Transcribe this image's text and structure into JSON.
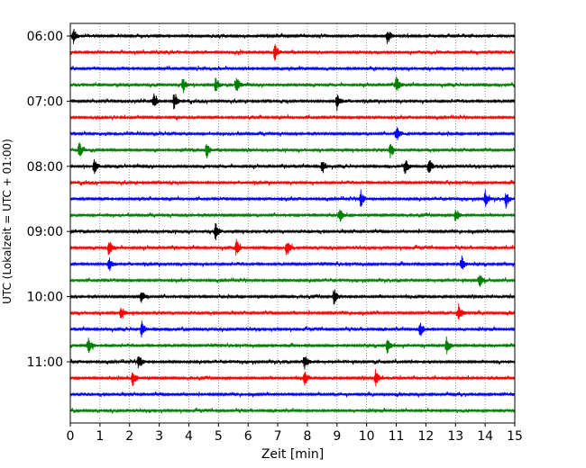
{
  "chart_data": {
    "type": "line",
    "title": "",
    "xlabel": "Zeit  [min]",
    "ylabel": "UTC (Lokalzeit = UTC + 01:00)",
    "xlim": [
      0,
      15
    ],
    "x_ticks": [
      "0",
      "1",
      "2",
      "3",
      "4",
      "5",
      "6",
      "7",
      "8",
      "9",
      "10",
      "11",
      "12",
      "13",
      "14",
      "15"
    ],
    "y_ticks": [
      "06:00",
      "07:00",
      "08:00",
      "09:00",
      "10:00",
      "11:00"
    ],
    "grid": "vertical dotted",
    "trace_colors": [
      "#000000",
      "#ff0000",
      "#0000ff",
      "#008000"
    ],
    "trace_interval_min": 15,
    "traces": [
      {
        "start": "06:00",
        "events_min": [
          0.1,
          10.7
        ]
      },
      {
        "start": "06:15",
        "events_min": [
          6.9
        ]
      },
      {
        "start": "06:30",
        "events_min": []
      },
      {
        "start": "06:45",
        "events_min": [
          3.8,
          4.9,
          5.6,
          11.0
        ]
      },
      {
        "start": "07:00",
        "events_min": [
          2.8,
          3.5,
          9.0
        ]
      },
      {
        "start": "07:15",
        "events_min": []
      },
      {
        "start": "07:30",
        "events_min": [
          11.0
        ]
      },
      {
        "start": "07:45",
        "events_min": [
          0.3,
          4.6,
          10.8
        ]
      },
      {
        "start": "08:00",
        "events_min": [
          0.8,
          8.5,
          11.3,
          12.1
        ]
      },
      {
        "start": "08:15",
        "events_min": []
      },
      {
        "start": "08:30",
        "events_min": [
          9.8,
          14.0,
          14.7
        ]
      },
      {
        "start": "08:45",
        "events_min": [
          9.1,
          13.0
        ]
      },
      {
        "start": "09:00",
        "events_min": [
          4.9
        ]
      },
      {
        "start": "09:15",
        "events_min": [
          1.3,
          5.6,
          7.3
        ]
      },
      {
        "start": "09:30",
        "events_min": [
          1.3,
          13.2
        ]
      },
      {
        "start": "09:45",
        "events_min": [
          13.8
        ]
      },
      {
        "start": "10:00",
        "events_min": [
          2.4,
          8.9
        ]
      },
      {
        "start": "10:15",
        "events_min": [
          1.7,
          13.1
        ]
      },
      {
        "start": "10:30",
        "events_min": [
          2.4,
          11.8
        ]
      },
      {
        "start": "10:45",
        "events_min": [
          0.6,
          10.7,
          12.7
        ]
      },
      {
        "start": "11:00",
        "events_min": [
          2.3,
          7.9
        ]
      },
      {
        "start": "11:15",
        "events_min": [
          2.1,
          7.9,
          10.3
        ]
      },
      {
        "start": "11:30",
        "events_min": []
      },
      {
        "start": "11:45",
        "events_min": []
      }
    ]
  }
}
